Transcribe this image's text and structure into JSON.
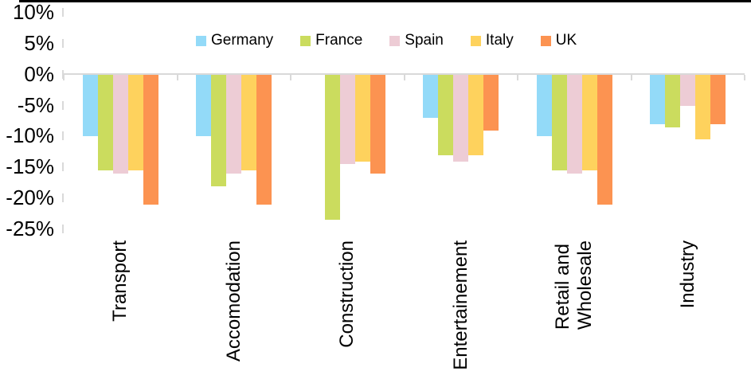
{
  "chart": {
    "background_color": "#FFFFFF",
    "top_border_color": "#000000",
    "axis_color": "#D9D9D9",
    "text_color": "#000000"
  },
  "chart_data": {
    "type": "bar",
    "title": "",
    "xlabel": "",
    "ylabel": "",
    "unit": "%",
    "categories": [
      "Transport",
      "Accomodation",
      "Construction",
      "Entertainement",
      "Retail and Wholesale",
      "Industry"
    ],
    "categories_display": [
      [
        "Transport"
      ],
      [
        "Accomodation"
      ],
      [
        "Construction"
      ],
      [
        "Entertainement"
      ],
      [
        "Retail and",
        "Wholesale"
      ],
      [
        "Industry"
      ]
    ],
    "series": [
      {
        "name": "Germany",
        "color": "#93DAF8",
        "values": [
          -10,
          -10,
          0,
          -7,
          -10,
          -8
        ]
      },
      {
        "name": "France",
        "color": "#CBDC5E",
        "values": [
          -15.5,
          -18,
          -23.5,
          -13,
          -15.5,
          -8.5
        ]
      },
      {
        "name": "Spain",
        "color": "#EDCCD5",
        "values": [
          -16,
          -16,
          -14.5,
          -14,
          -16,
          -5
        ]
      },
      {
        "name": "Italy",
        "color": "#FED25D",
        "values": [
          -15.5,
          -15.5,
          -14,
          -13,
          -15.5,
          -10.5
        ]
      },
      {
        "name": "UK",
        "color": "#FC9351",
        "values": [
          -21,
          -21,
          -16,
          -9,
          -21,
          -8
        ]
      }
    ],
    "ylim": [
      -25,
      10
    ],
    "ytick_step": 5,
    "ytick_labels": [
      "10%",
      "5%",
      "0%",
      "-5%",
      "-10%",
      "-15%",
      "-20%",
      "-25%"
    ],
    "grid": false,
    "legend_position": "top-center"
  }
}
